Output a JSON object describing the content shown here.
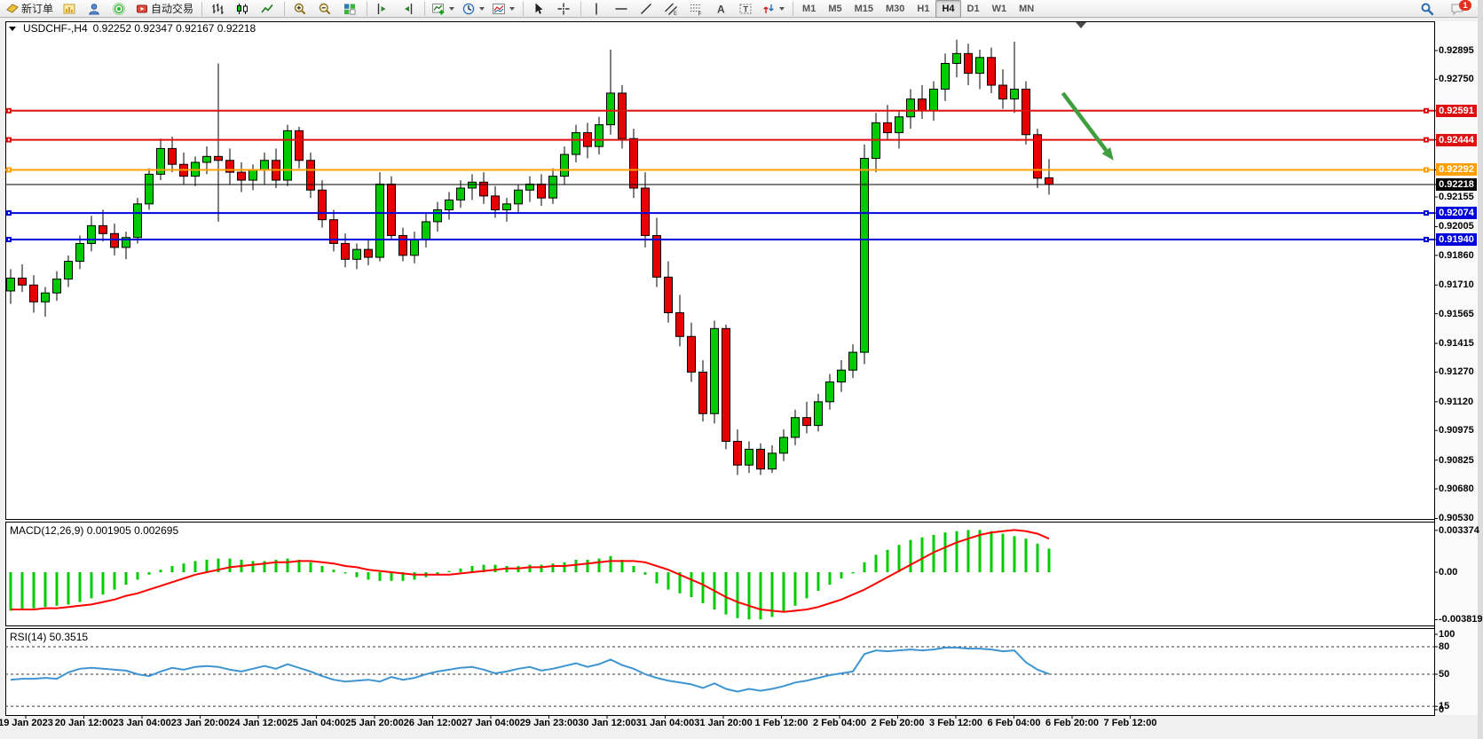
{
  "toolbar": {
    "buttons": [
      {
        "name": "new-order-button",
        "icon": "new-order",
        "label": "新订单"
      },
      {
        "name": "charts-window-button",
        "icon": "chart-window"
      },
      {
        "name": "profile-button",
        "icon": "user"
      },
      {
        "name": "signals-button",
        "icon": "signals"
      },
      {
        "name": "autotrading-button",
        "icon": "autotrading",
        "label": "自动交易"
      },
      {
        "type": "separator"
      },
      {
        "name": "bar-chart-button",
        "icon": "bars"
      },
      {
        "name": "candlestick-chart-button",
        "icon": "candles"
      },
      {
        "name": "line-chart-button",
        "icon": "line-chart"
      },
      {
        "type": "separator"
      },
      {
        "name": "zoom-in-button",
        "icon": "zoom-in"
      },
      {
        "name": "zoom-out-button",
        "icon": "zoom-out"
      },
      {
        "name": "tile-windows-button",
        "icon": "tile-windows"
      },
      {
        "type": "separator"
      },
      {
        "name": "chart-shift-button",
        "icon": "chart-shift"
      },
      {
        "name": "auto-scroll-button",
        "icon": "auto-scroll"
      },
      {
        "type": "separator"
      },
      {
        "name": "indicators-button",
        "icon": "indicators",
        "dropdown": true
      },
      {
        "name": "periods-button",
        "icon": "clock",
        "dropdown": true
      },
      {
        "name": "templates-button",
        "icon": "template",
        "dropdown": true
      },
      {
        "type": "separator"
      },
      {
        "name": "cursor-button",
        "icon": "cursor"
      },
      {
        "name": "crosshair-button",
        "icon": "crosshair"
      },
      {
        "type": "separator"
      },
      {
        "name": "vertical-line-button",
        "icon": "vline"
      },
      {
        "name": "horizontal-line-button",
        "icon": "hline"
      },
      {
        "name": "trendline-button",
        "icon": "trendline"
      },
      {
        "name": "equidistant-channel-button",
        "icon": "channel"
      },
      {
        "name": "fibonacci-button",
        "icon": "fibonacci"
      },
      {
        "name": "text-button",
        "icon": "text-a"
      },
      {
        "name": "text-label-button",
        "icon": "label-t"
      },
      {
        "name": "arrow-tools-button",
        "icon": "arrow-tools",
        "dropdown": true
      },
      {
        "type": "separator"
      }
    ],
    "timeframes": [
      "M1",
      "M5",
      "M15",
      "M30",
      "H1",
      "H4",
      "D1",
      "W1",
      "MN"
    ],
    "active_timeframe": "H4",
    "notifications_badge": "1"
  },
  "chart_data": [
    {
      "type": "candlestick",
      "symbol": "USDCHF-",
      "timeframe": "H4",
      "title_symbol": "USDCHF-,H4",
      "title_ohlc": "0.92252 0.92347 0.92167 0.92218",
      "ohlc": {
        "open": "0.92252",
        "high": "0.92347",
        "low": "0.92167",
        "close": "0.92218"
      },
      "ylim": [
        0.9053,
        0.9304
      ],
      "grid": false,
      "colors": {
        "up": "#00cb00",
        "down": "#e60000",
        "wick": "#000000",
        "background": "#ffffff"
      },
      "y_axis_ticks": [
        "0.92895",
        "0.92750",
        "0.92155",
        "0.92005",
        "0.91860",
        "0.91710",
        "0.91565",
        "0.91415",
        "0.91270",
        "0.91120",
        "0.90975",
        "0.90825",
        "0.90680",
        "0.90530"
      ],
      "levels": [
        {
          "label": "0.92591",
          "price": 0.92591,
          "color": "#dd1111",
          "kind": "resistance-line"
        },
        {
          "label": "0.92444",
          "price": 0.92444,
          "color": "#dd1111",
          "kind": "resistance-line"
        },
        {
          "label": "0.92292",
          "price": 0.92292,
          "color": "#ffa000",
          "kind": "pivot-line"
        },
        {
          "label": "0.92218",
          "price": 0.92218,
          "color": "#000000",
          "kind": "current-price-line",
          "current": true
        },
        {
          "label": "0.92074",
          "price": 0.92074,
          "color": "#0000dd",
          "kind": "support-line"
        },
        {
          "label": "0.91940",
          "price": 0.9194,
          "color": "#0000dd",
          "kind": "support-line"
        }
      ],
      "x_labels": [
        "19 Jan 2023",
        "20 Jan 12:00",
        "23 Jan 04:00",
        "23 Jan 20:00",
        "24 Jan 12:00",
        "25 Jan 04:00",
        "25 Jan 20:00",
        "26 Jan 12:00",
        "27 Jan 04:00",
        "29 Jan 23:00",
        "30 Jan 12:00",
        "31 Jan 04:00",
        "31 Jan 20:00",
        "1 Feb 12:00",
        "2 Feb 04:00",
        "2 Feb 20:00",
        "3 Feb 12:00",
        "6 Feb 04:00",
        "6 Feb 20:00",
        "7 Feb 12:00"
      ],
      "annotation_arrow": {
        "color": "#3f9e3f",
        "from_bar": 91.2,
        "from_price": 0.9268,
        "to_bar": 95.6,
        "to_price": 0.9234
      },
      "candles": [
        [
          0.9168,
          0.9179,
          0.91615,
          0.91745
        ],
        [
          0.91745,
          0.91815,
          0.91675,
          0.9171
        ],
        [
          0.9171,
          0.9176,
          0.9157,
          0.91625
        ],
        [
          0.91625,
          0.917,
          0.9155,
          0.9167
        ],
        [
          0.9167,
          0.9178,
          0.9163,
          0.9174
        ],
        [
          0.9174,
          0.9186,
          0.917,
          0.9183
        ],
        [
          0.9183,
          0.9196,
          0.9179,
          0.9192
        ],
        [
          0.9192,
          0.9206,
          0.9188,
          0.9201
        ],
        [
          0.9201,
          0.9209,
          0.9193,
          0.9197
        ],
        [
          0.9197,
          0.9202,
          0.9186,
          0.919
        ],
        [
          0.919,
          0.9198,
          0.9184,
          0.9195
        ],
        [
          0.9195,
          0.9215,
          0.9192,
          0.9212
        ],
        [
          0.9212,
          0.923,
          0.9209,
          0.9227
        ],
        [
          0.9227,
          0.9245,
          0.9224,
          0.924
        ],
        [
          0.924,
          0.9246,
          0.9228,
          0.9232
        ],
        [
          0.9232,
          0.9238,
          0.9222,
          0.9226
        ],
        [
          0.9226,
          0.9236,
          0.9221,
          0.9233
        ],
        [
          0.9233,
          0.9241,
          0.9227,
          0.9236
        ],
        [
          0.9236,
          0.9283,
          0.9203,
          0.9234
        ],
        [
          0.9234,
          0.924,
          0.9222,
          0.9228
        ],
        [
          0.9228,
          0.9233,
          0.9218,
          0.9224
        ],
        [
          0.9224,
          0.9232,
          0.9219,
          0.9229
        ],
        [
          0.9229,
          0.9238,
          0.9222,
          0.9234
        ],
        [
          0.9234,
          0.924,
          0.922,
          0.9224
        ],
        [
          0.9224,
          0.9252,
          0.9221,
          0.9249
        ],
        [
          0.9249,
          0.9251,
          0.923,
          0.9234
        ],
        [
          0.9234,
          0.9238,
          0.9215,
          0.9219
        ],
        [
          0.9219,
          0.9224,
          0.92,
          0.9204
        ],
        [
          0.9204,
          0.9209,
          0.9188,
          0.9192
        ],
        [
          0.9192,
          0.9197,
          0.918,
          0.9184
        ],
        [
          0.9184,
          0.9192,
          0.9179,
          0.9189
        ],
        [
          0.9189,
          0.9194,
          0.9181,
          0.9185
        ],
        [
          0.9185,
          0.9228,
          0.9183,
          0.9222
        ],
        [
          0.9222,
          0.9226,
          0.9194,
          0.9196
        ],
        [
          0.9196,
          0.92,
          0.9183,
          0.9186
        ],
        [
          0.9186,
          0.9198,
          0.9182,
          0.9194
        ],
        [
          0.9194,
          0.9207,
          0.919,
          0.9203
        ],
        [
          0.9203,
          0.9213,
          0.9198,
          0.9209
        ],
        [
          0.9209,
          0.9218,
          0.9204,
          0.9214
        ],
        [
          0.9214,
          0.9224,
          0.921,
          0.922
        ],
        [
          0.922,
          0.9227,
          0.9214,
          0.9223
        ],
        [
          0.9223,
          0.9228,
          0.9212,
          0.9216
        ],
        [
          0.9216,
          0.9221,
          0.9205,
          0.9209
        ],
        [
          0.9209,
          0.9215,
          0.9203,
          0.9212
        ],
        [
          0.9212,
          0.9222,
          0.9207,
          0.9219
        ],
        [
          0.9219,
          0.9226,
          0.9213,
          0.9222
        ],
        [
          0.9222,
          0.9227,
          0.9211,
          0.9215
        ],
        [
          0.9215,
          0.923,
          0.9212,
          0.9226
        ],
        [
          0.9226,
          0.9241,
          0.9222,
          0.9237
        ],
        [
          0.9237,
          0.9252,
          0.9233,
          0.9248
        ],
        [
          0.9248,
          0.9253,
          0.9235,
          0.9241
        ],
        [
          0.9241,
          0.9256,
          0.9237,
          0.9252
        ],
        [
          0.9252,
          0.929,
          0.9247,
          0.9268
        ],
        [
          0.9268,
          0.9272,
          0.924,
          0.9245
        ],
        [
          0.9245,
          0.925,
          0.9215,
          0.922
        ],
        [
          0.922,
          0.9228,
          0.919,
          0.9196
        ],
        [
          0.9196,
          0.9205,
          0.917,
          0.9175
        ],
        [
          0.9175,
          0.9183,
          0.9152,
          0.9157
        ],
        [
          0.9157,
          0.9166,
          0.914,
          0.9145
        ],
        [
          0.9145,
          0.9152,
          0.9122,
          0.9127
        ],
        [
          0.9127,
          0.9133,
          0.9102,
          0.9106
        ],
        [
          0.9106,
          0.9153,
          0.9101,
          0.9149
        ],
        [
          0.9149,
          0.9151,
          0.9088,
          0.9092
        ],
        [
          0.9092,
          0.9098,
          0.9075,
          0.908
        ],
        [
          0.908,
          0.9092,
          0.9076,
          0.9088
        ],
        [
          0.9088,
          0.9091,
          0.9075,
          0.9078
        ],
        [
          0.9078,
          0.909,
          0.9076,
          0.9086
        ],
        [
          0.9086,
          0.9098,
          0.9082,
          0.9094
        ],
        [
          0.9094,
          0.9108,
          0.909,
          0.9104
        ],
        [
          0.9104,
          0.9112,
          0.9096,
          0.91
        ],
        [
          0.91,
          0.9116,
          0.9097,
          0.9112
        ],
        [
          0.9112,
          0.9126,
          0.9108,
          0.9122
        ],
        [
          0.9122,
          0.9133,
          0.9117,
          0.9128
        ],
        [
          0.9128,
          0.9141,
          0.9124,
          0.9137
        ],
        [
          0.9137,
          0.9242,
          0.9131,
          0.9235
        ],
        [
          0.9235,
          0.9258,
          0.9228,
          0.9253
        ],
        [
          0.9253,
          0.9262,
          0.9244,
          0.9248
        ],
        [
          0.9248,
          0.9259,
          0.924,
          0.9256
        ],
        [
          0.9256,
          0.927,
          0.925,
          0.9265
        ],
        [
          0.9265,
          0.9272,
          0.9255,
          0.9259
        ],
        [
          0.9259,
          0.9274,
          0.9254,
          0.927
        ],
        [
          0.927,
          0.9288,
          0.9264,
          0.9283
        ],
        [
          0.9283,
          0.9295,
          0.9276,
          0.9288
        ],
        [
          0.9288,
          0.9293,
          0.9272,
          0.9278
        ],
        [
          0.9278,
          0.929,
          0.927,
          0.9286
        ],
        [
          0.9286,
          0.9291,
          0.9268,
          0.9272
        ],
        [
          0.9272,
          0.928,
          0.926,
          0.9265
        ],
        [
          0.9265,
          0.9294,
          0.9258,
          0.927
        ],
        [
          0.927,
          0.9274,
          0.9242,
          0.9247
        ],
        [
          0.9247,
          0.925,
          0.922,
          0.9225
        ],
        [
          0.92252,
          0.92347,
          0.92167,
          0.92218
        ]
      ]
    },
    {
      "type": "macd",
      "label": "MACD(12,26,9)",
      "value_main": "0.001905",
      "value_signal": "0.002695",
      "label_display": "MACD(12,26,9) 0.001905 0.002695",
      "colors": {
        "histogram": "#00cc00",
        "signal": "#ff0000"
      },
      "y_ticks": [
        {
          "value": 0.003374,
          "label": "0.003374"
        },
        {
          "value": 0,
          "label": "0.00"
        },
        {
          "value": -0.003819,
          "label": "-0.003819"
        }
      ],
      "histogram": [
        -0.0031,
        -0.003,
        -0.0029,
        -0.0028,
        -0.0027,
        -0.0026,
        -0.0024,
        -0.0021,
        -0.0018,
        -0.0014,
        -0.001,
        -0.0006,
        -0.0002,
        0.0002,
        0.0005,
        0.0007,
        0.0009,
        0.001,
        0.0011,
        0.0011,
        0.001,
        0.0009,
        0.0009,
        0.001,
        0.0011,
        0.001,
        0.0008,
        0.0005,
        0.0002,
        -0.0001,
        -0.0004,
        -0.0006,
        -0.0007,
        -0.0007,
        -0.0007,
        -0.0006,
        -0.0004,
        -0.0002,
        0.0001,
        0.0003,
        0.0005,
        0.0006,
        0.0006,
        0.0005,
        0.0005,
        0.0006,
        0.0006,
        0.0007,
        0.0008,
        0.001,
        0.001,
        0.0011,
        0.0013,
        0.001,
        0.0005,
        -0.0002,
        -0.0009,
        -0.0014,
        -0.0017,
        -0.002,
        -0.0025,
        -0.003,
        -0.0034,
        -0.0037,
        -0.0038,
        -0.0038,
        -0.0036,
        -0.0032,
        -0.0027,
        -0.0021,
        -0.0015,
        -0.001,
        -0.0005,
        -0.0001,
        0.0008,
        0.0014,
        0.0018,
        0.0022,
        0.0026,
        0.0028,
        0.003,
        0.0032,
        0.0033,
        0.0034,
        0.0034,
        0.0033,
        0.0031,
        0.0029,
        0.0027,
        0.0023,
        0.0019
      ],
      "signal": [
        -0.003,
        -0.003,
        -0.003,
        -0.0029,
        -0.0029,
        -0.0028,
        -0.0027,
        -0.0026,
        -0.0024,
        -0.0022,
        -0.0019,
        -0.0017,
        -0.0014,
        -0.0011,
        -0.0008,
        -0.0005,
        -0.0002,
        0.0,
        0.0002,
        0.0004,
        0.0005,
        0.0006,
        0.0007,
        0.0008,
        0.0008,
        0.0009,
        0.0009,
        0.0008,
        0.0007,
        0.0005,
        0.0004,
        0.0002,
        0.0001,
        0.0,
        -0.0001,
        -0.0002,
        -0.0002,
        -0.0002,
        -0.0002,
        -0.0001,
        0.0,
        0.0001,
        0.0002,
        0.0003,
        0.0003,
        0.0004,
        0.0004,
        0.0005,
        0.0005,
        0.0006,
        0.0007,
        0.0008,
        0.0009,
        0.0009,
        0.0009,
        0.0008,
        0.0005,
        0.0002,
        -0.0002,
        -0.0006,
        -0.001,
        -0.0015,
        -0.002,
        -0.0024,
        -0.0027,
        -0.003,
        -0.0031,
        -0.0032,
        -0.0031,
        -0.003,
        -0.0028,
        -0.0025,
        -0.0022,
        -0.0018,
        -0.0014,
        -0.0009,
        -0.0004,
        0.0001,
        0.0006,
        0.0011,
        0.0016,
        0.002,
        0.0024,
        0.0027,
        0.003,
        0.0032,
        0.0033,
        0.0034,
        0.0033,
        0.0031,
        0.0027
      ]
    },
    {
      "type": "rsi",
      "label": "RSI(14)",
      "value": "50.3515",
      "label_display": "RSI(14) 50.3515",
      "color": "#3e95d2",
      "levels": [
        80,
        50,
        15
      ],
      "y_ticks": [
        {
          "value": 100,
          "label": "100"
        },
        {
          "value": 80,
          "label": "80"
        },
        {
          "value": 50,
          "label": "50"
        },
        {
          "value": 15,
          "label": "15"
        },
        {
          "value": 0,
          "label": "0"
        }
      ],
      "values": [
        44,
        45,
        45,
        46,
        45,
        52,
        56,
        57,
        56,
        55,
        54,
        50,
        48,
        53,
        57,
        55,
        58,
        59,
        58,
        55,
        53,
        56,
        59,
        56,
        61,
        57,
        53,
        48,
        44,
        42,
        43,
        44,
        42,
        47,
        44,
        46,
        50,
        53,
        55,
        57,
        58,
        55,
        51,
        53,
        56,
        58,
        54,
        56,
        59,
        62,
        58,
        61,
        66,
        60,
        56,
        50,
        46,
        43,
        41,
        39,
        35,
        40,
        34,
        31,
        34,
        32,
        34,
        37,
        41,
        43,
        46,
        49,
        51,
        53,
        72,
        76,
        75,
        76,
        77,
        76,
        77,
        79,
        79,
        78,
        78,
        77,
        75,
        76,
        63,
        55,
        50.35
      ]
    }
  ]
}
